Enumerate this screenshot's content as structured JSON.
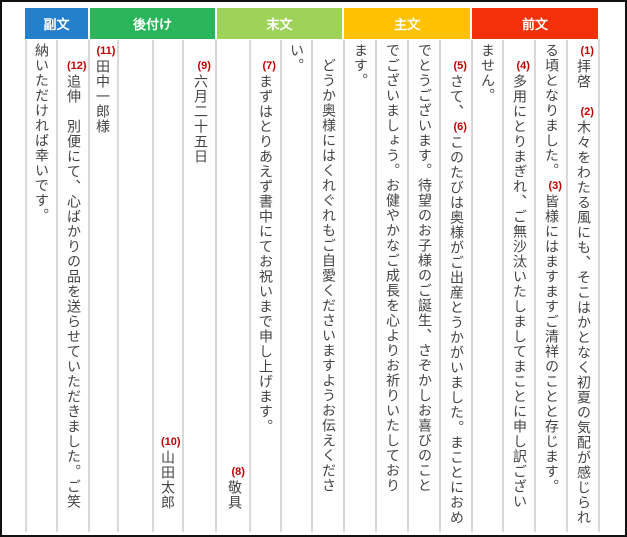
{
  "headers": [
    {
      "label": "副文",
      "color": "#2580cc"
    },
    {
      "label": "後付け",
      "color": "#2bb55a"
    },
    {
      "label": "末文",
      "color": "#9ed35a"
    },
    {
      "label": "主文",
      "color": "#fec200"
    },
    {
      "label": "前文",
      "color": "#f2300a"
    }
  ],
  "columns": [
    {
      "section": "前文",
      "text": "拝啓　木々をわたる風にも、そこはかとなく初夏の気配が感じられ"
    },
    {
      "section": "前文",
      "text": "る頃となりました。皆様にはますますご清祥のことと存じます。"
    },
    {
      "section": "前文",
      "text": "　多用にとりまぎれ、ご無沙汰いたしましてまことに申し訳ござい"
    },
    {
      "section": "前文",
      "text": "ません。"
    },
    {
      "section": "主文",
      "text": "　さて、このたびは奥様がご出産とうかがいました。まことにおめ"
    },
    {
      "section": "主文",
      "text": "でとうございます。待望のお子様のご誕生、さぞかしお喜びのこと"
    },
    {
      "section": "主文",
      "text": "でございましょう。お健やかなご成長を心よりお祈りいたしており"
    },
    {
      "section": "主文",
      "text": "ます。"
    },
    {
      "section": "末文",
      "text": "　どうか奥様にはくれぐれもご自愛くださいますようお伝えくださ"
    },
    {
      "section": "末文",
      "text": "い。"
    },
    {
      "section": "末文",
      "text": "　まずはとりあえず書中にてお祝いまで申し上げます。"
    },
    {
      "section": "末文",
      "text": "敬具"
    },
    {
      "section": "後付け",
      "text": "　六月二十五日"
    },
    {
      "section": "後付け",
      "text": "山田太郎"
    },
    {
      "section": "後付け",
      "text": ""
    },
    {
      "section": "後付け",
      "text": "田中一郎様"
    },
    {
      "section": "副文",
      "text": "　追伸　別便にて、心ばかりの品を送らせていただきました。ご笑"
    },
    {
      "section": "副文",
      "text": "納いただければ幸いです。"
    }
  ],
  "markers": [
    "(1)",
    "(2)",
    "(3)",
    "(4)",
    "(5)",
    "(6)",
    "(7)",
    "(8)",
    "(9)",
    "(10)",
    "(11)",
    "(12)"
  ]
}
